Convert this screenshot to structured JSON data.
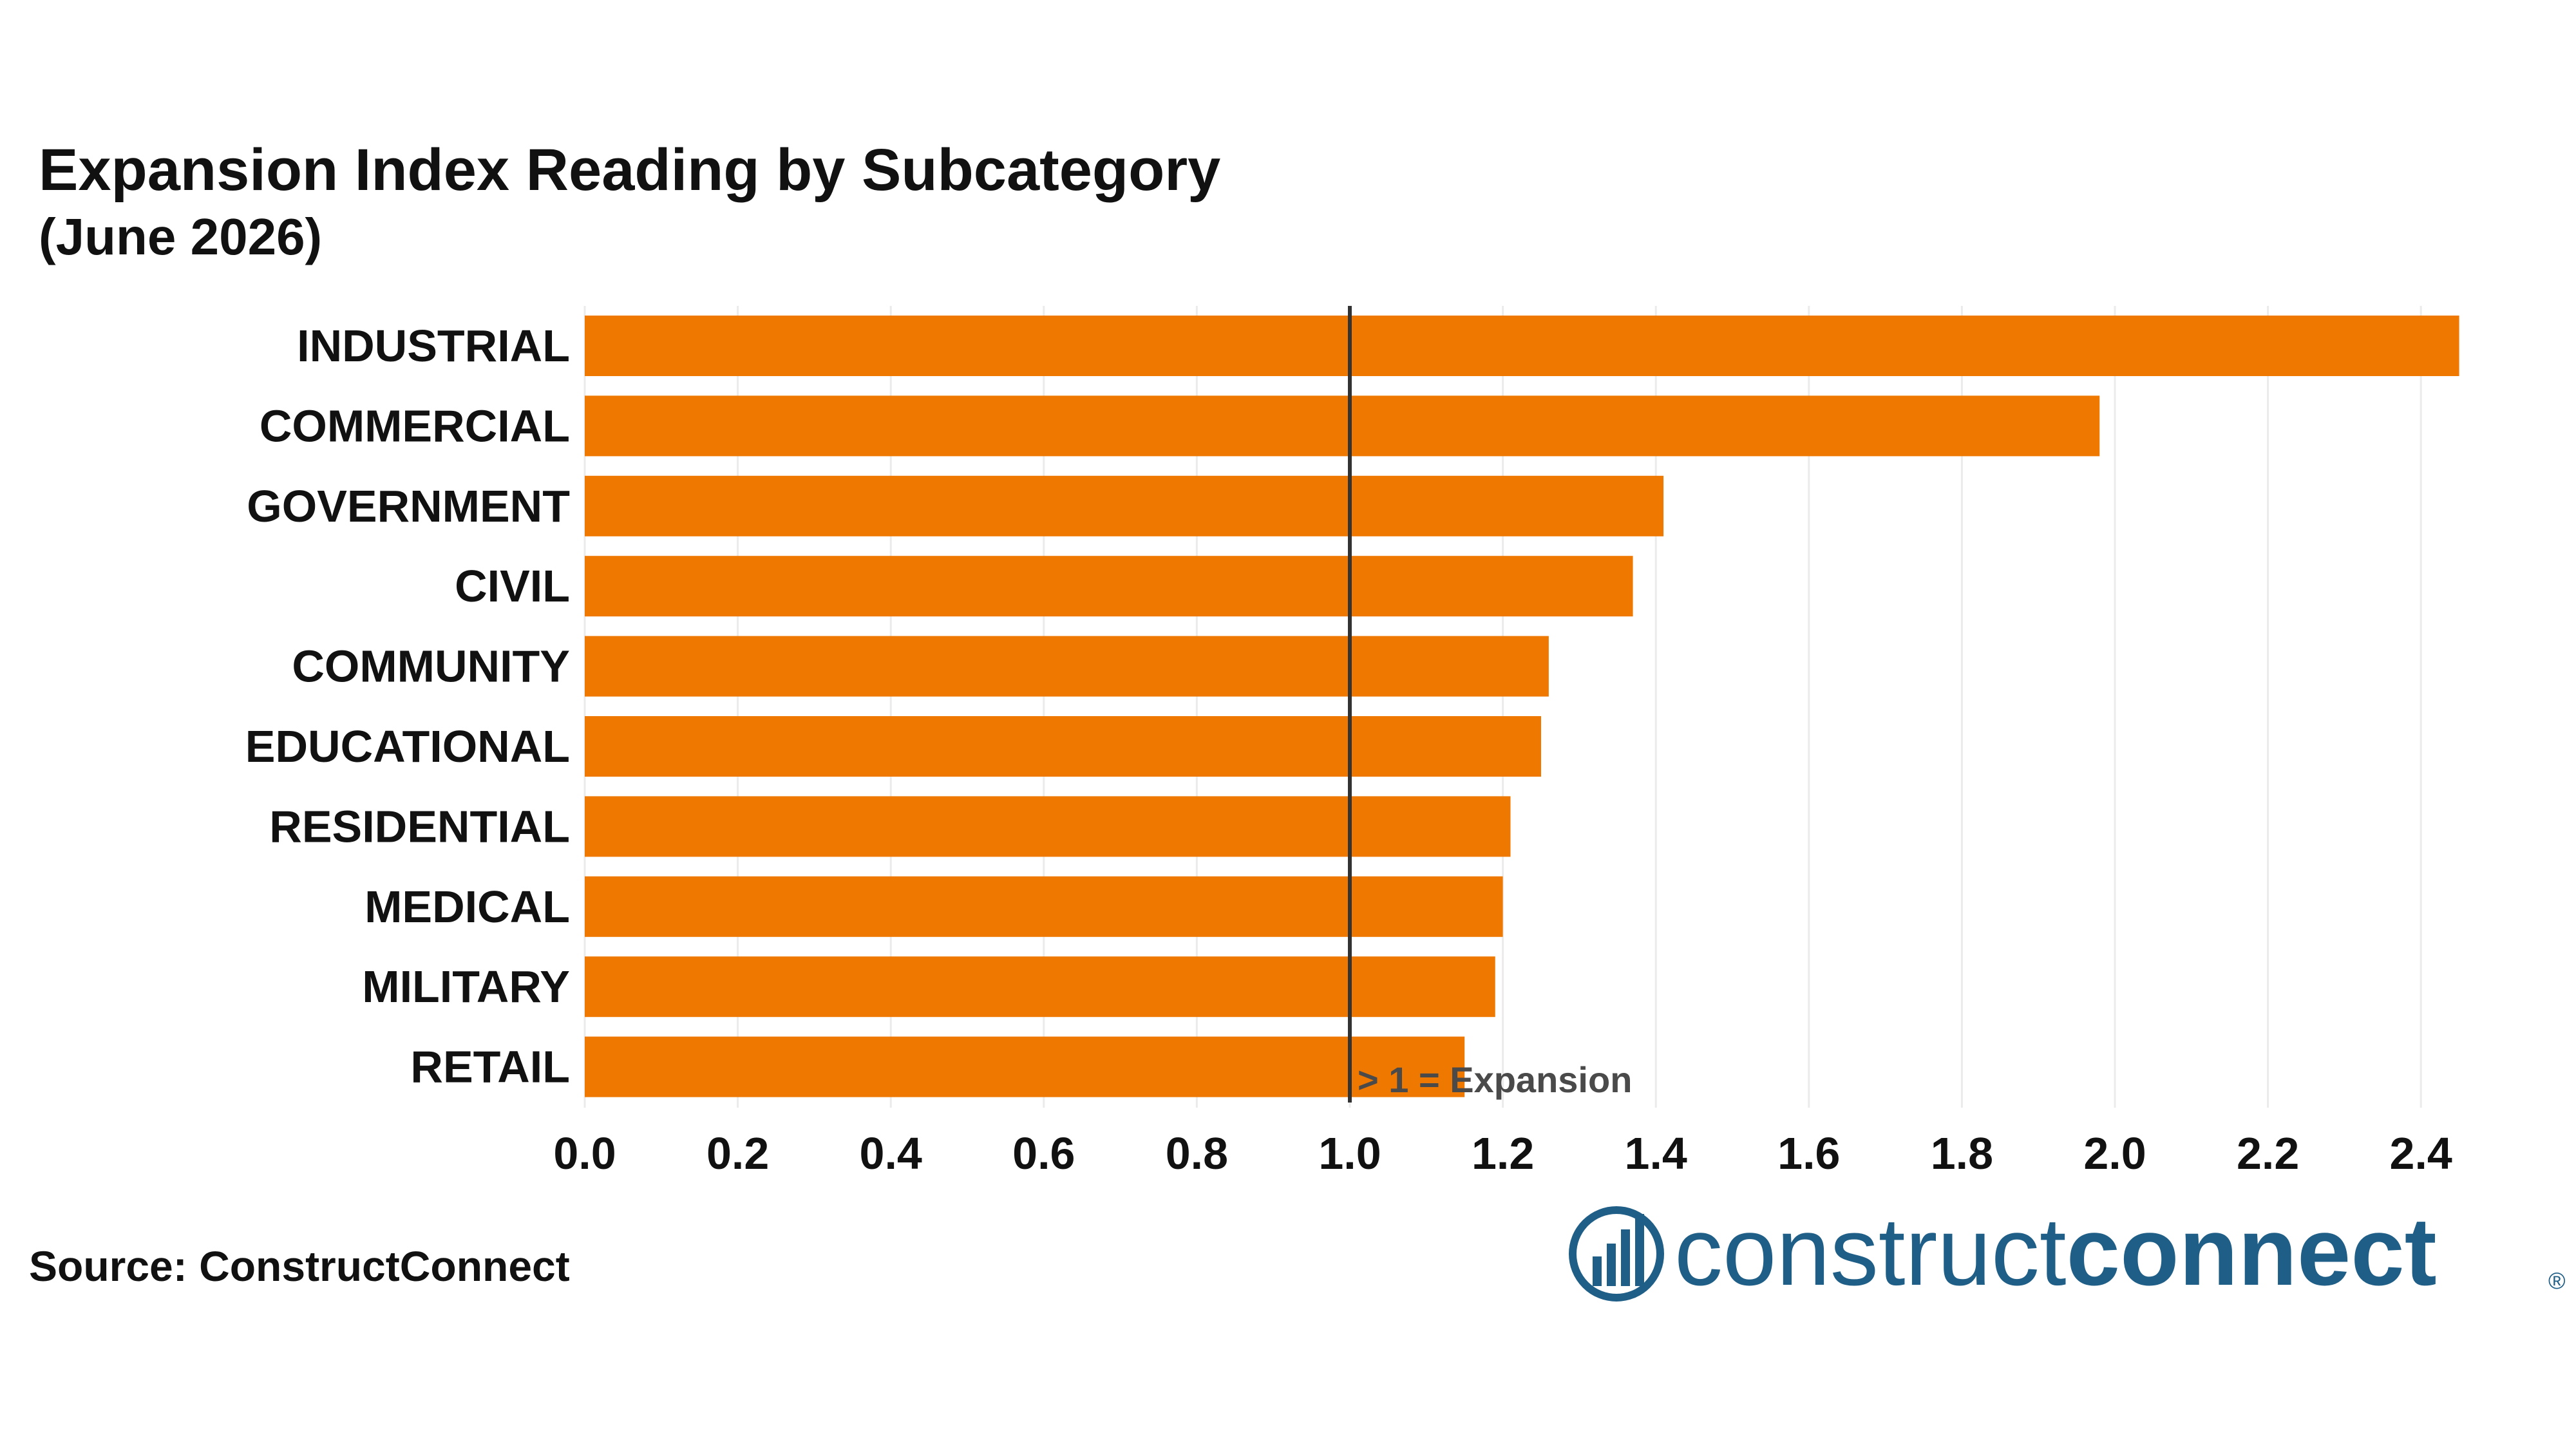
{
  "chart_data": {
    "type": "bar",
    "orientation": "horizontal",
    "title": "Expansion Index Reading by Subcategory",
    "subtitle": "(June 2026)",
    "categories": [
      "INDUSTRIAL",
      "COMMERCIAL",
      "GOVERNMENT",
      "CIVIL",
      "COMMUNITY",
      "EDUCATIONAL",
      "RESIDENTIAL",
      "MEDICAL",
      "MILITARY",
      "RETAIL"
    ],
    "values": [
      2.45,
      1.98,
      1.41,
      1.37,
      1.26,
      1.25,
      1.21,
      1.2,
      1.19,
      1.15
    ],
    "bar_color": "#ee7800",
    "xlim": [
      0,
      2.55
    ],
    "xticks": [
      "0.0",
      "0.2",
      "0.4",
      "0.6",
      "0.8",
      "1.0",
      "1.2",
      "1.4",
      "1.6",
      "1.8",
      "2.0",
      "2.2",
      "2.4"
    ],
    "reference_line": {
      "value": 1.0,
      "label": "> 1 = Expansion",
      "color": "#333333"
    },
    "grid": true,
    "legend": "none"
  },
  "source": "Source: ConstructConnect",
  "logo": {
    "text_light": "construct",
    "text_bold": "connect",
    "mark": "®",
    "color": "#1f5e86"
  }
}
